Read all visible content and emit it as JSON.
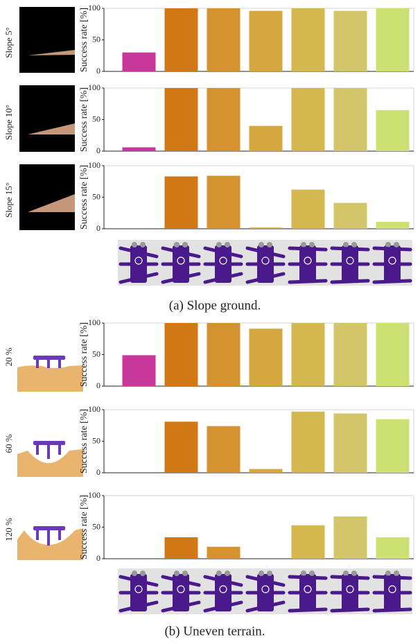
{
  "chart_data": [
    {
      "type": "bar",
      "label": "Slope 5°",
      "ylabel": "Success rate [%]",
      "categories": [
        null,
        null,
        null,
        null,
        null,
        null,
        null
      ],
      "values": [
        30,
        100,
        100,
        96,
        100,
        96,
        100
      ],
      "colors": [
        "#c8379a",
        "#d07816",
        "#d4932f",
        "#d5a83f",
        "#d3b74f",
        "#d3c56a",
        "#cde072"
      ],
      "ylim": [
        0,
        100
      ],
      "yticks": [
        0,
        50,
        100
      ]
    },
    {
      "type": "bar",
      "label": "Slope 10°",
      "ylabel": "Success rate [%]",
      "categories": [
        null,
        null,
        null,
        null,
        null,
        null,
        null
      ],
      "values": [
        6,
        100,
        100,
        40,
        100,
        100,
        65
      ],
      "colors": [
        "#c8379a",
        "#d07816",
        "#d4932f",
        "#d5a83f",
        "#d3b74f",
        "#d3c56a",
        "#cde072"
      ],
      "ylim": [
        0,
        100
      ],
      "yticks": [
        0,
        50,
        100
      ]
    },
    {
      "type": "bar",
      "label": "Slope 15°",
      "ylabel": "Success rate [%]",
      "categories": [
        null,
        null,
        null,
        null,
        null,
        null,
        null
      ],
      "values": [
        0,
        83,
        84,
        2,
        62,
        41,
        11
      ],
      "colors": [
        "#c8379a",
        "#d07816",
        "#d4932f",
        "#d5a83f",
        "#d3b74f",
        "#d3c56a",
        "#cde072"
      ],
      "ylim": [
        0,
        100
      ],
      "yticks": [
        0,
        50,
        100
      ]
    },
    {
      "type": "bar",
      "label": "20 %",
      "ylabel": "Success rate [%]",
      "categories": [
        null,
        null,
        null,
        null,
        null,
        null,
        null
      ],
      "values": [
        49,
        100,
        100,
        91,
        100,
        100,
        100
      ],
      "colors": [
        "#c8379a",
        "#d07816",
        "#d4932f",
        "#d5a83f",
        "#d3b74f",
        "#d3c56a",
        "#cde072"
      ],
      "ylim": [
        0,
        100
      ],
      "yticks": [
        0,
        50,
        100
      ]
    },
    {
      "type": "bar",
      "label": "60 %",
      "ylabel": "Success rate [%]",
      "categories": [
        null,
        null,
        null,
        null,
        null,
        null,
        null
      ],
      "values": [
        0,
        81,
        74,
        6,
        97,
        94,
        85
      ],
      "colors": [
        "#c8379a",
        "#d07816",
        "#d4932f",
        "#d5a83f",
        "#d3b74f",
        "#d3c56a",
        "#cde072"
      ],
      "ylim": [
        0,
        100
      ],
      "yticks": [
        0,
        50,
        100
      ]
    },
    {
      "type": "bar",
      "label": "120 %",
      "ylabel": "Success rate [%]",
      "categories": [
        null,
        null,
        null,
        null,
        null,
        null,
        null
      ],
      "values": [
        0,
        34,
        19,
        0,
        53,
        67,
        34
      ],
      "colors": [
        "#c8379a",
        "#d07816",
        "#d4932f",
        "#d5a83f",
        "#d3b74f",
        "#d3c56a",
        "#cde072"
      ],
      "ylim": [
        0,
        100
      ],
      "yticks": [
        0,
        50,
        100
      ]
    }
  ],
  "captions": [
    "(a) Slope ground.",
    "(b) Uneven terrain."
  ]
}
